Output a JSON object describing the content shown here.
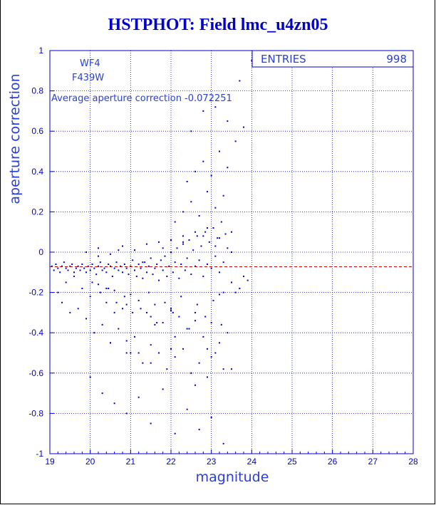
{
  "title": "HSTPHOT: Field lmc_u4zn05",
  "colors": {
    "axis": "#0000cc",
    "points": "#0000cc",
    "mean_line": "#cc0000"
  },
  "annotations": {
    "chip": "WF4",
    "filter": "F439W",
    "average_text": "Average aperture correction -0.072251"
  },
  "stats": {
    "entries_label": "ENTRIES",
    "entries_value": "998"
  },
  "chart_data": {
    "type": "scatter",
    "xlabel": "magnitude",
    "ylabel": "aperture correction",
    "xlim": [
      19,
      28
    ],
    "ylim": [
      -1,
      1
    ],
    "x_ticks": [
      19,
      20,
      21,
      22,
      23,
      24,
      25,
      26,
      27,
      28
    ],
    "y_ticks": [
      1,
      0.8,
      0.6,
      0.4,
      0.2,
      0,
      -0.2,
      -0.4,
      -0.6,
      -0.8,
      -1
    ],
    "y_tick_labels": [
      "1",
      "0.8",
      "0.6",
      "0.4",
      "0.2",
      "0",
      "-0.2",
      "-0.4",
      "-0.6",
      "-0.8",
      "-1"
    ],
    "grid": true,
    "mean_line_y": -0.072251,
    "entries": 998,
    "point_x": [
      19.05,
      19.1,
      19.15,
      19.2,
      19.25,
      19.3,
      19.35,
      19.4,
      19.45,
      19.5,
      19.55,
      19.6,
      19.65,
      19.7,
      19.75,
      19.8,
      19.85,
      19.9,
      19.95,
      20.0,
      20.05,
      20.1,
      20.15,
      20.2,
      20.25,
      20.3,
      20.35,
      20.4,
      20.45,
      20.5,
      20.55,
      20.6,
      20.65,
      20.7,
      20.75,
      20.8,
      20.85,
      20.9,
      20.95,
      21.0,
      21.05,
      21.1,
      21.15,
      21.2,
      21.25,
      21.3,
      21.35,
      21.4,
      21.45,
      21.5,
      21.55,
      21.6,
      21.65,
      21.7,
      21.75,
      21.8,
      21.85,
      21.9,
      21.95,
      22.0,
      22.05,
      22.1,
      22.15,
      22.2,
      22.25,
      22.3,
      22.35,
      22.4,
      22.45,
      22.5,
      22.55,
      22.6,
      22.65,
      22.7,
      22.75,
      22.8,
      22.85,
      22.9,
      22.95,
      23.0,
      23.05,
      23.1,
      23.15,
      23.2,
      23.25,
      23.3,
      23.35,
      23.4,
      23.5,
      23.6,
      23.7,
      23.8,
      23.9,
      19.2,
      19.4,
      19.6,
      19.8,
      20.0,
      20.2,
      20.4,
      20.6,
      20.8,
      21.0,
      21.2,
      21.4,
      21.6,
      21.8,
      22.0,
      22.2,
      22.4,
      22.6,
      22.8,
      23.0,
      23.2,
      23.4,
      19.3,
      19.5,
      19.7,
      19.9,
      20.1,
      20.3,
      20.5,
      20.7,
      20.9,
      21.1,
      21.3,
      21.5,
      21.7,
      21.9,
      22.1,
      22.3,
      22.5,
      22.7,
      22.9,
      23.1,
      23.3,
      20.05,
      20.25,
      20.45,
      20.65,
      20.85,
      21.05,
      21.25,
      21.45,
      21.65,
      21.85,
      22.05,
      22.25,
      22.45,
      22.65,
      22.85,
      23.05,
      23.25,
      20.0,
      20.3,
      20.6,
      20.9,
      21.2,
      21.5,
      21.8,
      22.1,
      22.4,
      22.7,
      23.0,
      23.3,
      20.5,
      21.0,
      21.5,
      22.0,
      22.5,
      23.0,
      23.5,
      19.9,
      20.2,
      20.5,
      20.8,
      21.1,
      21.4,
      21.7,
      22.0,
      22.3,
      22.6,
      22.9,
      23.2,
      22.1,
      22.3,
      22.5,
      22.7,
      22.9,
      23.1,
      23.3,
      23.5,
      22.4,
      22.6,
      22.8,
      23.0,
      23.2,
      23.4,
      23.6,
      23.8,
      22.5,
      22.8,
      23.1,
      23.4,
      23.7,
      24.0,
      20.6,
      20.9,
      21.2,
      21.6,
      22.1,
      22.6,
      22.9,
      23.3,
      20.2,
      20.7,
      21.3,
      21.8,
      22.3,
      22.8,
      23.1,
      23.5,
      20.4,
      20.9,
      21.5,
      22.0,
      22.6,
      23.2
    ],
    "point_y": [
      -0.07,
      -0.09,
      -0.06,
      -0.08,
      -0.1,
      -0.07,
      -0.05,
      -0.08,
      -0.09,
      -0.07,
      -0.06,
      -0.1,
      -0.08,
      -0.07,
      -0.09,
      -0.06,
      -0.08,
      -0.1,
      -0.07,
      -0.09,
      -0.06,
      -0.08,
      -0.11,
      -0.07,
      -0.05,
      -0.09,
      -0.08,
      -0.1,
      -0.06,
      -0.07,
      -0.12,
      -0.08,
      -0.05,
      -0.09,
      -0.07,
      -0.1,
      -0.06,
      -0.08,
      -0.11,
      -0.07,
      -0.04,
      -0.09,
      -0.12,
      -0.06,
      -0.08,
      -0.13,
      -0.05,
      -0.1,
      -0.07,
      -0.03,
      -0.11,
      -0.08,
      -0.06,
      -0.14,
      -0.04,
      -0.09,
      -0.02,
      -0.12,
      -0.07,
      0.0,
      -0.1,
      -0.05,
      0.02,
      -0.13,
      -0.06,
      0.04,
      -0.09,
      -0.03,
      0.06,
      -0.11,
      0.01,
      -0.07,
      0.08,
      -0.04,
      0.03,
      -0.12,
      0.1,
      -0.06,
      0.05,
      -0.08,
      0.12,
      -0.02,
      0.07,
      -0.1,
      0.15,
      -0.05,
      0.09,
      0.02,
      -0.15,
      -0.2,
      -0.18,
      -0.12,
      -0.14,
      -0.2,
      -0.15,
      -0.12,
      -0.18,
      -0.22,
      -0.16,
      -0.25,
      -0.19,
      -0.28,
      -0.21,
      -0.24,
      -0.3,
      -0.26,
      -0.35,
      -0.28,
      -0.32,
      -0.38,
      -0.3,
      -0.42,
      -0.35,
      -0.45,
      -0.4,
      -0.25,
      -0.3,
      -0.28,
      -0.33,
      -0.4,
      -0.36,
      -0.45,
      -0.38,
      -0.5,
      -0.42,
      -0.55,
      -0.46,
      -0.5,
      -0.58,
      -0.52,
      -0.48,
      -0.6,
      -0.55,
      -0.62,
      -0.5,
      -0.58,
      -0.15,
      -0.2,
      -0.18,
      -0.25,
      -0.22,
      -0.3,
      -0.28,
      -0.2,
      -0.35,
      -0.25,
      -0.3,
      -0.22,
      -0.38,
      -0.26,
      -0.32,
      -0.24,
      -0.36,
      -0.62,
      -0.7,
      -0.75,
      -0.8,
      -0.72,
      -0.85,
      -0.68,
      -0.9,
      -0.78,
      -0.88,
      -0.82,
      -0.95,
      -0.45,
      -0.5,
      -0.55,
      -0.48,
      -0.6,
      -0.52,
      -0.58,
      0.0,
      0.02,
      -0.01,
      0.03,
      0.01,
      0.04,
      0.05,
      0.06,
      0.08,
      0.1,
      0.12,
      0.07,
      0.15,
      0.2,
      0.25,
      0.18,
      0.3,
      0.22,
      0.28,
      0.1,
      0.35,
      0.4,
      0.45,
      0.38,
      0.5,
      0.42,
      0.55,
      0.62,
      0.6,
      0.7,
      0.72,
      0.65,
      0.85,
      0.95,
      -0.3,
      -0.44,
      -0.5,
      -0.36,
      -0.42,
      -0.66,
      -0.48,
      -0.2,
      -0.02,
      0.01,
      -0.05,
      0.02,
      0.05,
      0.08,
      0.03,
      0.0,
      -0.18,
      -0.26,
      -0.32,
      -0.29,
      -0.34,
      -0.21
    ]
  }
}
